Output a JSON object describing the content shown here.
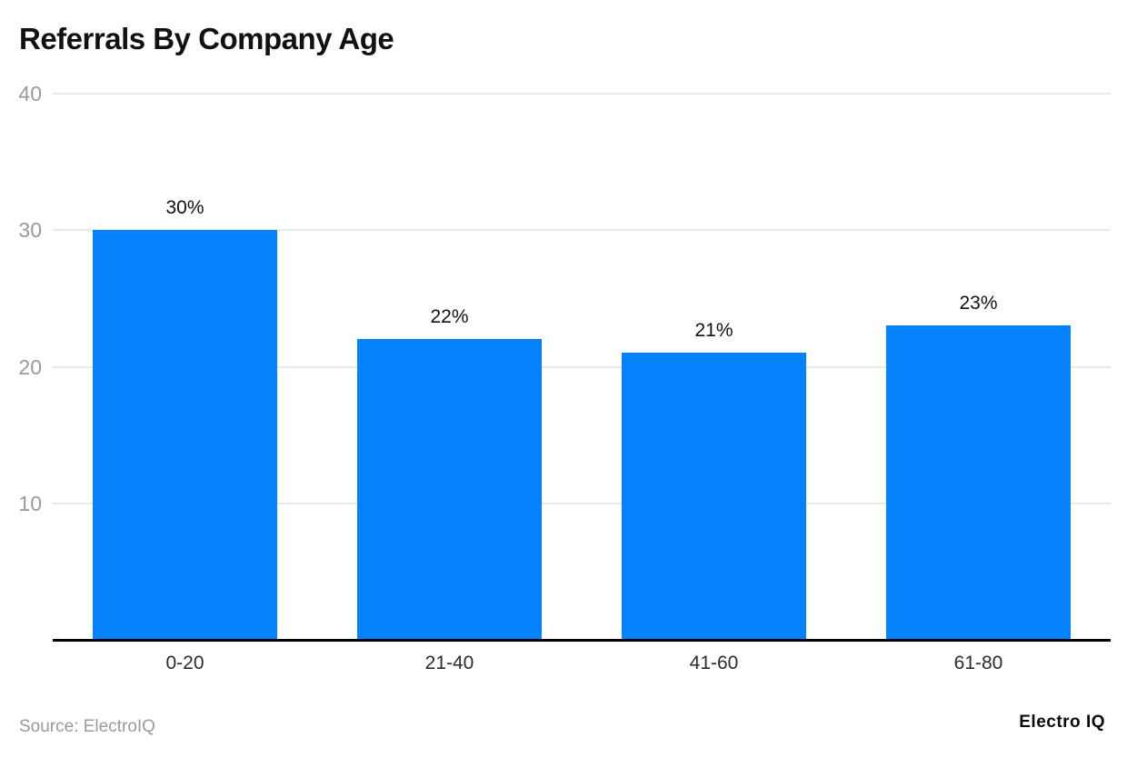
{
  "header": {
    "title": "Referrals By Company Age"
  },
  "chart_data": {
    "type": "bar",
    "title": "Referrals By Company Age",
    "categories": [
      "0-20",
      "21-40",
      "41-60",
      "61-80"
    ],
    "values": [
      30,
      22,
      21,
      23
    ],
    "value_labels": [
      "30%",
      "22%",
      "21%",
      "23%"
    ],
    "xlabel": "",
    "ylabel": "",
    "ylim": [
      0,
      40
    ],
    "yticks": [
      10,
      20,
      30,
      40
    ],
    "grid": true,
    "legend": "none",
    "bar_color": "#0681fc"
  },
  "colors": {
    "background": "#ffffff",
    "bar": "#0681fc",
    "gridline": "#e9e9e9",
    "baseline": "#000000",
    "ytick_text": "#9a9a9a",
    "xtick_text": "#2b2b2b",
    "title_text": "#111111",
    "source_text": "#9b9b9b"
  },
  "footer": {
    "source": "Source: ElectroIQ",
    "logo": "Electro IQ"
  }
}
